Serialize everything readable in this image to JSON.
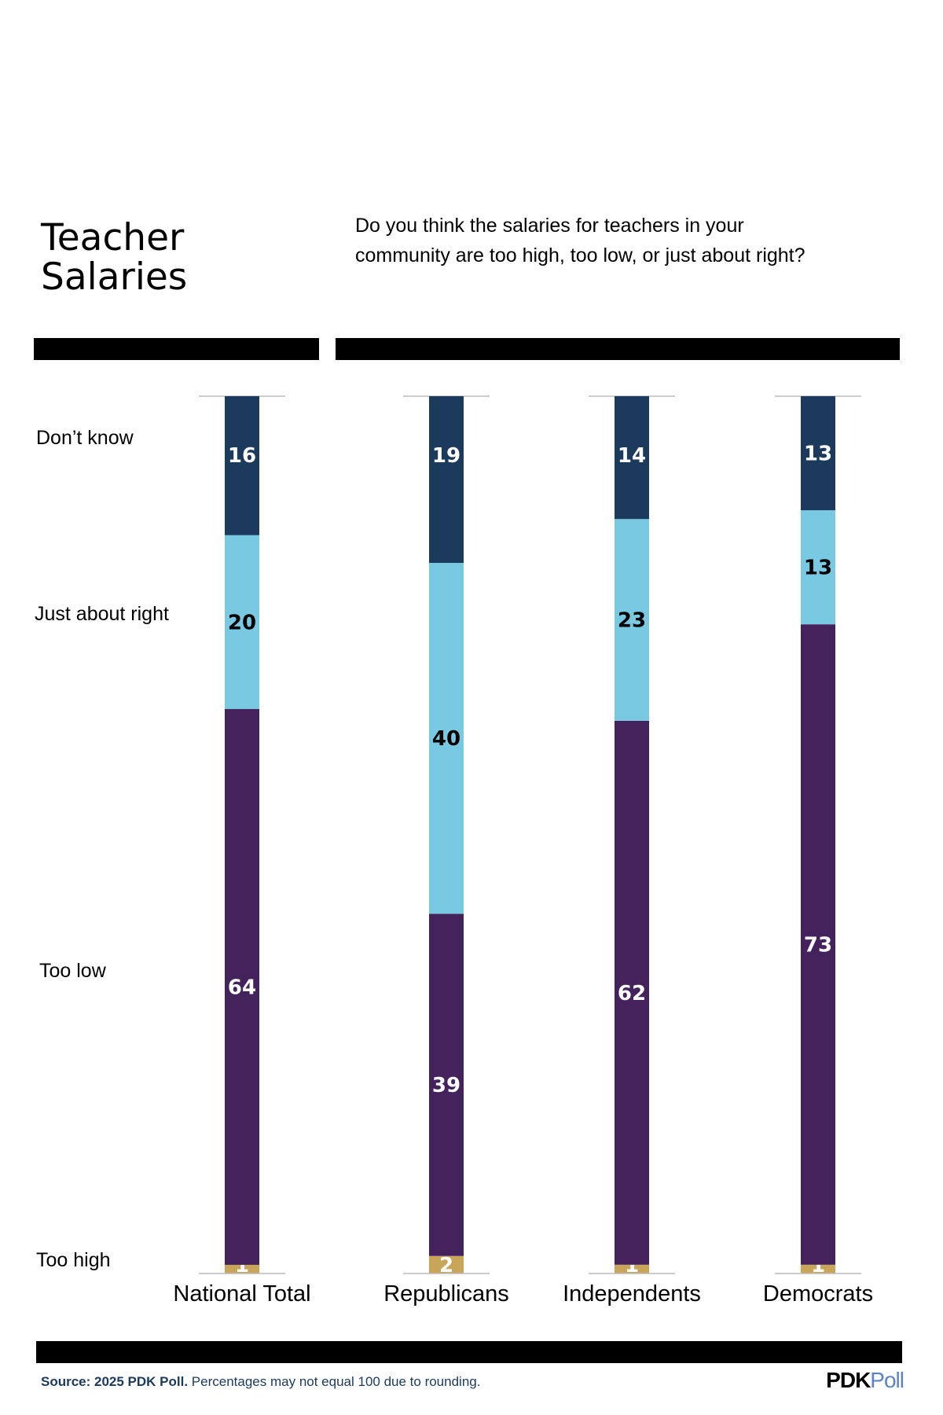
{
  "chart_data": {
    "type": "stacked-bar",
    "title": "Teacher Salaries",
    "subtitle": "Do you think the salaries for teachers in your community are too high, too low, or just about right?",
    "categories": [
      "National Total",
      "Republicans",
      "Independents",
      "Democrats"
    ],
    "series": [
      {
        "name": "Too high",
        "color": "#c9a55a",
        "label_color": "#ffffff",
        "values": [
          1,
          2,
          1,
          1
        ]
      },
      {
        "name": "Too low",
        "color": "#44235c",
        "label_color": "#ffffff",
        "values": [
          64,
          39,
          62,
          73
        ]
      },
      {
        "name": "Just about right",
        "color": "#7ac9e3",
        "label_color": "#000000",
        "values": [
          20,
          40,
          23,
          13
        ]
      },
      {
        "name": "Don’t know",
        "color": "#1b3a5c",
        "label_color": "#ffffff",
        "values": [
          16,
          19,
          14,
          13
        ]
      }
    ]
  },
  "footer": {
    "source_bold": "Source: 2025 PDK Poll.",
    "source_rest": " Percentages may not equal 100 due to rounding.",
    "logo_a": "PDK",
    "logo_b": "Poll"
  }
}
